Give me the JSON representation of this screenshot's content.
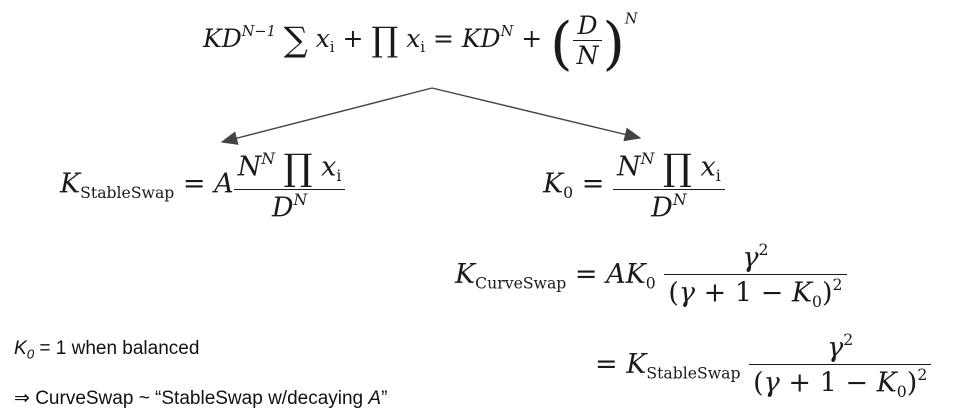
{
  "equation_main": {
    "K": "K",
    "D": "D",
    "exp_n_minus_1": "N−1",
    "sum": "∑",
    "x": "x",
    "i": "i",
    "plus": "+",
    "prod": "∏",
    "equals": "=",
    "exp_n": "N",
    "N": "N"
  },
  "k_stableswap": {
    "K": "K",
    "sub": "StableSwap",
    "equals": "=",
    "A": "A",
    "N": "N",
    "exp_n": "N",
    "prod": "∏",
    "x": "x",
    "i": "i",
    "D": "D"
  },
  "k0": {
    "K": "K",
    "sub": "0",
    "equals": "=",
    "N": "N",
    "exp_n": "N",
    "prod": "∏",
    "x": "x",
    "i": "i",
    "D": "D"
  },
  "k_curveswap": {
    "K": "K",
    "sub": "CurveSwap",
    "equals": "=",
    "A": "A",
    "K0": "K",
    "sub0": "0",
    "gamma": "γ",
    "sq": "2",
    "den_open": "(",
    "den_plus": "+",
    "one": "1",
    "minus": "−",
    "den_close": ")"
  },
  "k_curveswap_2": {
    "equals": "=",
    "K": "K",
    "sub": "StableSwap",
    "gamma": "γ",
    "sq": "2",
    "den_open": "(",
    "den_plus": "+",
    "one": "1",
    "minus": "−",
    "sub0": "0",
    "den_close": ")"
  },
  "notes": {
    "k0_letter": "K",
    "k0_sub": "0",
    "k0_text": " = 1 when balanced",
    "conclusion_prefix": "⇒ CurveSwap ~ “StableSwap w/decaying ",
    "conclusion_var": "A",
    "conclusion_suffix": "”"
  },
  "colors": {
    "text": "#1a1a1a",
    "arrow": "#444444",
    "background": "#ffffff"
  }
}
